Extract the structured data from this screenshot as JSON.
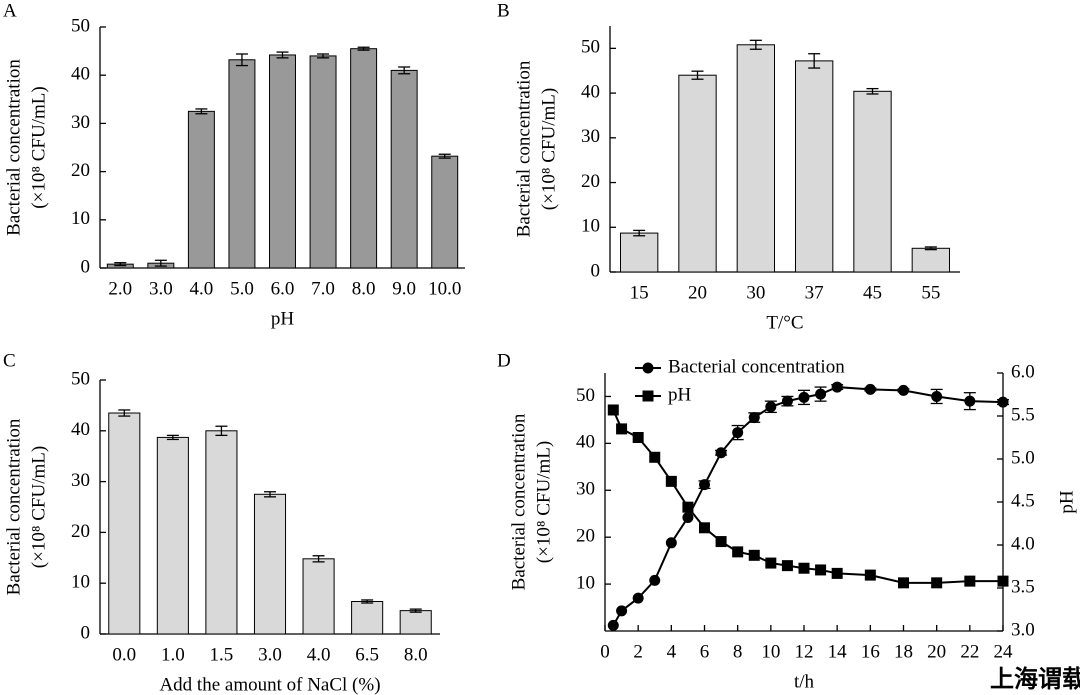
{
  "chart_data": [
    {
      "panel": "A",
      "type": "bar",
      "color": "#999999",
      "categories": [
        "2.0",
        "3.0",
        "4.0",
        "5.0",
        "6.0",
        "7.0",
        "8.0",
        "9.0",
        "10.0"
      ],
      "values": [
        0.8,
        1.0,
        32.5,
        43.2,
        44.2,
        44.0,
        45.5,
        41.0,
        23.2
      ],
      "errors": [
        0.3,
        0.6,
        0.5,
        1.2,
        0.6,
        0.4,
        0.3,
        0.7,
        0.4
      ],
      "ylim": [
        0,
        50
      ],
      "yticks": [
        0,
        10,
        20,
        30,
        40,
        50
      ],
      "x_label": "pH",
      "y_label": [
        "Bacterial concentration",
        "(×10⁸ CFU/mL)"
      ]
    },
    {
      "panel": "B",
      "type": "bar",
      "color": "#d9d9d9",
      "categories": [
        "15",
        "20",
        "30",
        "37",
        "45",
        "55"
      ],
      "values": [
        8.7,
        44.0,
        50.8,
        47.2,
        40.4,
        5.3
      ],
      "errors": [
        0.6,
        0.9,
        1.0,
        1.6,
        0.6,
        0.3
      ],
      "ylim": [
        0,
        55
      ],
      "yticks": [
        0,
        10,
        20,
        30,
        40,
        50
      ],
      "x_label": "T/°C",
      "y_label": [
        "Bacterial concentration",
        "(×10⁸ CFU/mL)"
      ]
    },
    {
      "panel": "C",
      "type": "bar",
      "color": "#d9d9d9",
      "categories": [
        "0.0",
        "1.0",
        "1.5",
        "3.0",
        "4.0",
        "6.5",
        "8.0"
      ],
      "values": [
        43.5,
        38.7,
        40.0,
        27.5,
        14.8,
        6.4,
        4.6
      ],
      "errors": [
        0.6,
        0.4,
        0.9,
        0.5,
        0.6,
        0.3,
        0.3
      ],
      "ylim": [
        0,
        50
      ],
      "yticks": [
        0,
        10,
        20,
        30,
        40,
        50
      ],
      "x_label": "Add the amount of NaCl (%)",
      "y_label": [
        "Bacterial concentration",
        "(×10⁸ CFU/mL)"
      ]
    },
    {
      "panel": "D",
      "type": "line",
      "x": [
        0.5,
        1,
        2,
        3,
        4,
        5,
        6,
        7,
        8,
        9,
        10,
        11,
        12,
        13,
        14,
        16,
        18,
        20,
        22,
        24
      ],
      "xlim": [
        0,
        24
      ],
      "xticks": [
        0,
        2,
        4,
        6,
        8,
        10,
        12,
        14,
        16,
        18,
        20,
        22,
        24
      ],
      "ylim": [
        0,
        55
      ],
      "yticks": [
        10,
        20,
        30,
        40,
        50
      ],
      "y2lim": [
        3.0,
        6.0
      ],
      "y2ticks": [
        {
          "value": 3.0,
          "label": "3.0"
        },
        {
          "value": 3.5,
          "label": "3.5"
        },
        {
          "value": 4.0,
          "label": "4.0"
        },
        {
          "value": 4.5,
          "label": "4.5"
        },
        {
          "value": 5.0,
          "label": "5.0"
        },
        {
          "value": 5.5,
          "label": "5.5"
        },
        {
          "value": 6.0,
          "label": "6.0"
        }
      ],
      "series": [
        {
          "name": "Bacterial concentration",
          "color": "#000000",
          "marker": "circle",
          "values": [
            1.2,
            4.3,
            7.0,
            10.8,
            18.8,
            24.2,
            31.2,
            38.0,
            42.3,
            45.5,
            47.8,
            49.0,
            49.8,
            50.5,
            52.0,
            51.5,
            51.3,
            50.0,
            49.0,
            48.8
          ],
          "errors": [
            0,
            0,
            0,
            0,
            0,
            0,
            0.8,
            0.5,
            1.5,
            1.0,
            1.2,
            1.0,
            1.5,
            1.5,
            0.5,
            0.3,
            0.3,
            1.5,
            1.8,
            0.5
          ]
        },
        {
          "name": "pH",
          "color": "#000000",
          "marker": "square",
          "axis": "y2",
          "values": [
            5.57,
            5.35,
            5.25,
            5.02,
            4.74,
            4.44,
            4.2,
            4.04,
            3.92,
            3.88,
            3.79,
            3.76,
            3.73,
            3.71,
            3.67,
            3.65,
            3.56,
            3.56,
            3.58,
            3.58
          ]
        }
      ],
      "x_label": "t/h",
      "y_label": [
        "Bacterial concentration",
        "(×10⁸ CFU/mL)"
      ],
      "y2_label": "pH"
    }
  ],
  "watermark": "上海谓载"
}
